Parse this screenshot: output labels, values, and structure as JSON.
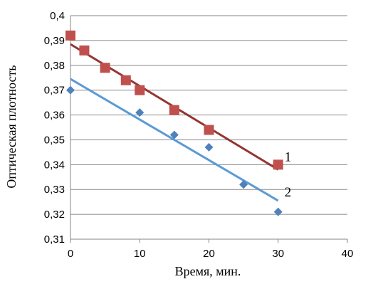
{
  "chart_data": {
    "type": "scatter",
    "title": "",
    "xlabel": "Время, мин.",
    "ylabel": "Оптическая плотность",
    "xlim": [
      0,
      40
    ],
    "ylim": [
      0.31,
      0.4
    ],
    "x_ticks": [
      "0",
      "10",
      "20",
      "30",
      "40"
    ],
    "y_ticks": [
      "0,31",
      "0,32",
      "0,33",
      "0,34",
      "0,35",
      "0,36",
      "0,37",
      "0,38",
      "0,39",
      "0,4"
    ],
    "grid": "horizontal",
    "series": [
      {
        "label": "1",
        "marker": "square",
        "color": "#C0504D",
        "trend_color": "#943634",
        "points": [
          [
            0,
            0.392
          ],
          [
            2,
            0.386
          ],
          [
            5,
            0.379
          ],
          [
            8,
            0.374
          ],
          [
            10,
            0.37
          ],
          [
            15,
            0.362
          ],
          [
            20,
            0.354
          ],
          [
            30,
            0.34
          ]
        ],
        "trendline": [
          [
            0,
            0.3885
          ],
          [
            30,
            0.338
          ]
        ]
      },
      {
        "label": "2",
        "marker": "diamond",
        "color": "#4F81BD",
        "trend_color": "#5B9BD5",
        "points": [
          [
            0,
            0.37
          ],
          [
            10,
            0.361
          ],
          [
            15,
            0.352
          ],
          [
            20,
            0.347
          ],
          [
            25,
            0.332
          ],
          [
            30,
            0.321
          ]
        ],
        "trendline": [
          [
            0,
            0.3745
          ],
          [
            30,
            0.3255
          ]
        ]
      }
    ]
  }
}
